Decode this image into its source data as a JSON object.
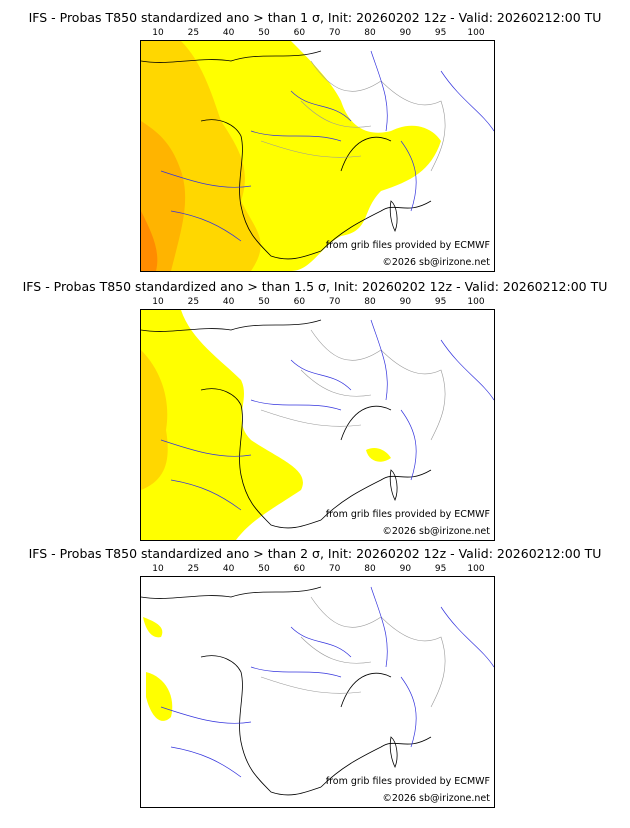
{
  "colorbar": {
    "ticks": [
      "10",
      "25",
      "40",
      "50",
      "60",
      "70",
      "80",
      "90",
      "95",
      "100"
    ],
    "colors": [
      "#ffff00",
      "#ffd700",
      "#ffb400",
      "#ff8c00",
      "#ff6400",
      "#ff2000",
      "#dc0000",
      "#a00000",
      "#640000"
    ]
  },
  "panels": [
    {
      "title": "IFS - Probas T850  standardized ano > than 1 σ, Init: 20260202 12z - Valid: 20260212:00 TU",
      "level": 1
    },
    {
      "title": "IFS - Probas T850  standardized ano > than 1.5 σ, Init: 20260202 12z - Valid: 20260212:00 TU",
      "level": 2
    },
    {
      "title": "IFS - Probas T850  standardized ano > than 2 σ, Init: 20260202 12z - Valid: 20260212:00 TU",
      "level": 3
    }
  ],
  "credits": {
    "source": "from grib files provided by ECMWF",
    "copyright": "©2026 sb@irizone.net"
  },
  "chart_data": [
    {
      "type": "heatmap",
      "title": "IFS - Probas T850  standardized ano > than 1 σ, Init: 20260202 12z - Valid: 20260212:00 TU",
      "legend_ticks": [
        10,
        25,
        40,
        50,
        60,
        70,
        80,
        90,
        95,
        100
      ],
      "units": "%",
      "region": "France / Western Europe",
      "summary": "Western half 25-60%, rest of France 10-25%, east mostly below 10"
    },
    {
      "type": "heatmap",
      "title": "IFS - Probas T850  standardized ano > than 1.5 σ, Init: 20260202 12z - Valid: 20260212:00 TU",
      "legend_ticks": [
        10,
        25,
        40,
        50,
        60,
        70,
        80,
        90,
        95,
        100
      ],
      "units": "%",
      "region": "France / Western Europe",
      "summary": "Atlantic coast and SW 10-40%"
    },
    {
      "type": "heatmap",
      "title": "IFS - Probas T850  standardized ano > than 2 σ, Init: 20260202 12z - Valid: 20260212:00 TU",
      "legend_ticks": [
        10,
        25,
        40,
        50,
        60,
        70,
        80,
        90,
        95,
        100
      ],
      "units": "%",
      "region": "France / Western Europe",
      "summary": "Small patches 10-25% off western coast"
    }
  ]
}
